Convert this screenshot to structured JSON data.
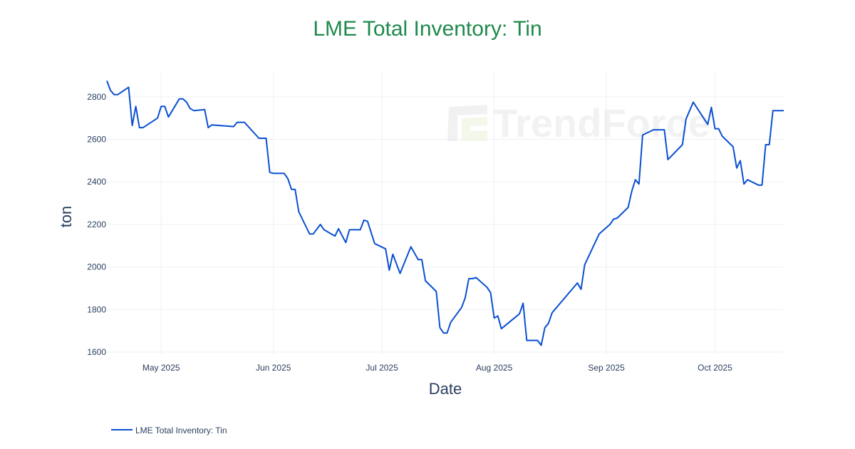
{
  "chart_data": {
    "type": "line",
    "title": "LME Total Inventory: Tin",
    "xlabel": "Date",
    "ylabel": "ton",
    "xlim": [
      "2025-04-16",
      "2025-10-20"
    ],
    "ylim": [
      1590,
      2920
    ],
    "x_ticks": [
      {
        "date": "2025-05-01",
        "label": "May 2025"
      },
      {
        "date": "2025-06-01",
        "label": "Jun 2025"
      },
      {
        "date": "2025-07-01",
        "label": "Jul 2025"
      },
      {
        "date": "2025-08-01",
        "label": "Aug 2025"
      },
      {
        "date": "2025-09-01",
        "label": "Sep 2025"
      },
      {
        "date": "2025-10-01",
        "label": "Oct 2025"
      }
    ],
    "y_ticks": [
      1600,
      1800,
      2000,
      2200,
      2400,
      2600,
      2800
    ],
    "grid": true,
    "legend_position": "bottom-left",
    "series": [
      {
        "name": "LME Total Inventory: Tin",
        "color": "#0a50d2",
        "points": [
          {
            "x": "2025-04-16",
            "y": 2875
          },
          {
            "x": "2025-04-17",
            "y": 2830
          },
          {
            "x": "2025-04-18",
            "y": 2810
          },
          {
            "x": "2025-04-19",
            "y": 2810
          },
          {
            "x": "2025-04-22",
            "y": 2845
          },
          {
            "x": "2025-04-23",
            "y": 2665
          },
          {
            "x": "2025-04-24",
            "y": 2755
          },
          {
            "x": "2025-04-25",
            "y": 2655
          },
          {
            "x": "2025-04-26",
            "y": 2655
          },
          {
            "x": "2025-04-30",
            "y": 2700
          },
          {
            "x": "2025-05-01",
            "y": 2755
          },
          {
            "x": "2025-05-02",
            "y": 2755
          },
          {
            "x": "2025-05-03",
            "y": 2705
          },
          {
            "x": "2025-05-06",
            "y": 2790
          },
          {
            "x": "2025-05-07",
            "y": 2790
          },
          {
            "x": "2025-05-08",
            "y": 2775
          },
          {
            "x": "2025-05-09",
            "y": 2745
          },
          {
            "x": "2025-05-10",
            "y": 2735
          },
          {
            "x": "2025-05-13",
            "y": 2740
          },
          {
            "x": "2025-05-14",
            "y": 2655
          },
          {
            "x": "2025-05-15",
            "y": 2668
          },
          {
            "x": "2025-05-21",
            "y": 2660
          },
          {
            "x": "2025-05-22",
            "y": 2680
          },
          {
            "x": "2025-05-24",
            "y": 2680
          },
          {
            "x": "2025-05-28",
            "y": 2605
          },
          {
            "x": "2025-05-30",
            "y": 2605
          },
          {
            "x": "2025-05-31",
            "y": 2445
          },
          {
            "x": "2025-06-01",
            "y": 2440
          },
          {
            "x": "2025-06-04",
            "y": 2440
          },
          {
            "x": "2025-06-05",
            "y": 2415
          },
          {
            "x": "2025-06-06",
            "y": 2365
          },
          {
            "x": "2025-06-07",
            "y": 2365
          },
          {
            "x": "2025-06-08",
            "y": 2260
          },
          {
            "x": "2025-06-11",
            "y": 2155
          },
          {
            "x": "2025-06-12",
            "y": 2155
          },
          {
            "x": "2025-06-14",
            "y": 2200
          },
          {
            "x": "2025-06-15",
            "y": 2175
          },
          {
            "x": "2025-06-18",
            "y": 2145
          },
          {
            "x": "2025-06-19",
            "y": 2180
          },
          {
            "x": "2025-06-21",
            "y": 2115
          },
          {
            "x": "2025-06-22",
            "y": 2175
          },
          {
            "x": "2025-06-25",
            "y": 2175
          },
          {
            "x": "2025-06-26",
            "y": 2220
          },
          {
            "x": "2025-06-27",
            "y": 2215
          },
          {
            "x": "2025-06-29",
            "y": 2110
          },
          {
            "x": "2025-07-02",
            "y": 2085
          },
          {
            "x": "2025-07-03",
            "y": 1985
          },
          {
            "x": "2025-07-04",
            "y": 2060
          },
          {
            "x": "2025-07-06",
            "y": 1970
          },
          {
            "x": "2025-07-09",
            "y": 2095
          },
          {
            "x": "2025-07-11",
            "y": 2035
          },
          {
            "x": "2025-07-12",
            "y": 2035
          },
          {
            "x": "2025-07-13",
            "y": 1935
          },
          {
            "x": "2025-07-16",
            "y": 1885
          },
          {
            "x": "2025-07-17",
            "y": 1715
          },
          {
            "x": "2025-07-18",
            "y": 1690
          },
          {
            "x": "2025-07-19",
            "y": 1690
          },
          {
            "x": "2025-07-20",
            "y": 1740
          },
          {
            "x": "2025-07-23",
            "y": 1810
          },
          {
            "x": "2025-07-24",
            "y": 1855
          },
          {
            "x": "2025-07-25",
            "y": 1945
          },
          {
            "x": "2025-07-26",
            "y": 1945
          },
          {
            "x": "2025-07-27",
            "y": 1950
          },
          {
            "x": "2025-07-30",
            "y": 1905
          },
          {
            "x": "2025-07-31",
            "y": 1880
          },
          {
            "x": "2025-08-01",
            "y": 1760
          },
          {
            "x": "2025-08-02",
            "y": 1770
          },
          {
            "x": "2025-08-03",
            "y": 1710
          },
          {
            "x": "2025-08-08",
            "y": 1780
          },
          {
            "x": "2025-08-09",
            "y": 1830
          },
          {
            "x": "2025-08-10",
            "y": 1655
          },
          {
            "x": "2025-08-13",
            "y": 1655
          },
          {
            "x": "2025-08-14",
            "y": 1632
          },
          {
            "x": "2025-08-15",
            "y": 1715
          },
          {
            "x": "2025-08-16",
            "y": 1735
          },
          {
            "x": "2025-08-17",
            "y": 1785
          },
          {
            "x": "2025-08-24",
            "y": 1925
          },
          {
            "x": "2025-08-25",
            "y": 1895
          },
          {
            "x": "2025-08-26",
            "y": 2010
          },
          {
            "x": "2025-08-30",
            "y": 2155
          },
          {
            "x": "2025-09-02",
            "y": 2200
          },
          {
            "x": "2025-09-03",
            "y": 2225
          },
          {
            "x": "2025-09-04",
            "y": 2230
          },
          {
            "x": "2025-09-07",
            "y": 2280
          },
          {
            "x": "2025-09-08",
            "y": 2355
          },
          {
            "x": "2025-09-09",
            "y": 2410
          },
          {
            "x": "2025-09-10",
            "y": 2390
          },
          {
            "x": "2025-09-11",
            "y": 2620
          },
          {
            "x": "2025-09-14",
            "y": 2645
          },
          {
            "x": "2025-09-17",
            "y": 2645
          },
          {
            "x": "2025-09-18",
            "y": 2505
          },
          {
            "x": "2025-09-22",
            "y": 2575
          },
          {
            "x": "2025-09-23",
            "y": 2695
          },
          {
            "x": "2025-09-25",
            "y": 2775
          },
          {
            "x": "2025-09-29",
            "y": 2670
          },
          {
            "x": "2025-09-30",
            "y": 2750
          },
          {
            "x": "2025-10-01",
            "y": 2650
          },
          {
            "x": "2025-10-02",
            "y": 2650
          },
          {
            "x": "2025-10-03",
            "y": 2615
          },
          {
            "x": "2025-10-06",
            "y": 2565
          },
          {
            "x": "2025-10-07",
            "y": 2465
          },
          {
            "x": "2025-10-08",
            "y": 2500
          },
          {
            "x": "2025-10-09",
            "y": 2390
          },
          {
            "x": "2025-10-10",
            "y": 2410
          },
          {
            "x": "2025-10-13",
            "y": 2385
          },
          {
            "x": "2025-10-14",
            "y": 2385
          },
          {
            "x": "2025-10-15",
            "y": 2575
          },
          {
            "x": "2025-10-16",
            "y": 2575
          },
          {
            "x": "2025-10-17",
            "y": 2735
          },
          {
            "x": "2025-10-20",
            "y": 2735
          }
        ]
      }
    ]
  },
  "watermark": {
    "text": "TrendForce"
  },
  "colors": {
    "title": "#1f8a4c",
    "line": "#0a50d2",
    "axis_text": "#2a3f5f",
    "grid": "#eef0f4"
  }
}
